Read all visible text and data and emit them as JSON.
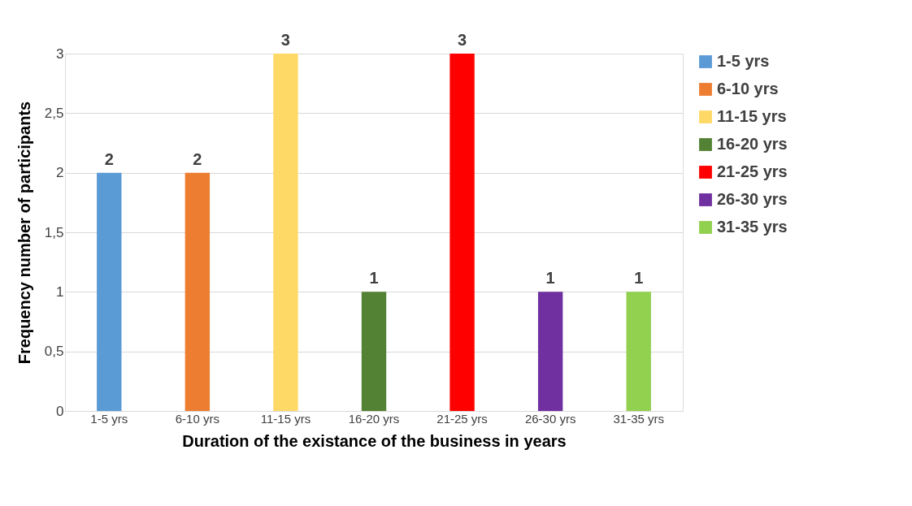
{
  "chart_data": {
    "type": "bar",
    "xlabel": "Duration of the existance of the business in years",
    "ylabel": "Frequency number  of participants",
    "categories": [
      "1-5 yrs",
      "6-10 yrs",
      "11-15 yrs",
      "16-20 yrs",
      "21-25 yrs",
      "26-30 yrs",
      "31-35 yrs"
    ],
    "stacked": true,
    "series": [
      {
        "name": "1-5 yrs",
        "color": "#5b9bd5",
        "values": [
          2,
          null,
          null,
          null,
          null,
          null,
          null
        ]
      },
      {
        "name": "6-10 yrs",
        "color": "#ed7d31",
        "values": [
          null,
          2,
          null,
          null,
          null,
          null,
          null
        ]
      },
      {
        "name": "11-15 yrs",
        "color": "#ffd966",
        "values": [
          null,
          null,
          3,
          null,
          null,
          null,
          null
        ]
      },
      {
        "name": "16-20 yrs",
        "color": "#548235",
        "values": [
          null,
          null,
          null,
          1,
          null,
          null,
          null
        ]
      },
      {
        "name": "21-25 yrs",
        "color": "#ff0000",
        "values": [
          null,
          null,
          null,
          null,
          3,
          null,
          null
        ]
      },
      {
        "name": "26-30 yrs",
        "color": "#7030a0",
        "values": [
          null,
          null,
          null,
          null,
          null,
          1,
          null
        ]
      },
      {
        "name": "31-35 yrs",
        "color": "#92d050",
        "values": [
          null,
          null,
          null,
          null,
          null,
          null,
          1
        ]
      }
    ],
    "ylim": [
      0,
      3
    ],
    "yticks": [
      0,
      {
        "value": 0.5,
        "label": "0,5"
      },
      1,
      {
        "value": 1.5,
        "label": "1,5"
      },
      2,
      {
        "value": 2.5,
        "label": "2,5"
      },
      3
    ],
    "grid": "y",
    "legend": "right",
    "data_labels": true
  }
}
